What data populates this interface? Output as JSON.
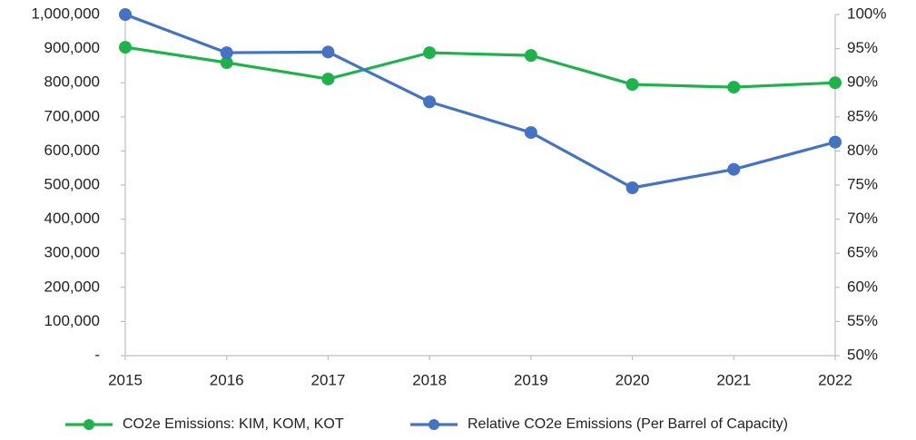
{
  "chart_data": {
    "type": "line",
    "categories": [
      "2015",
      "2016",
      "2017",
      "2018",
      "2019",
      "2020",
      "2021",
      "2022"
    ],
    "series": [
      {
        "name": "CO2e Emissions: KIM, KOM, KOT",
        "color": "#1db24a",
        "values": [
          904000,
          859000,
          811000,
          888000,
          880000,
          795000,
          787000,
          800000
        ]
      },
      {
        "name": "Relative CO2e Emissions (Per Barrel of Capacity)",
        "color": "#4472c4",
        "axis": "y2",
        "values": [
          100,
          94.4,
          94.5,
          87.2,
          82.7,
          74.6,
          77.3,
          81.3
        ]
      }
    ],
    "ylim": [
      0,
      1000000
    ],
    "yticks": [
      {
        "value": 0,
        "label": "-"
      },
      {
        "value": 100000,
        "label": "100,000"
      },
      {
        "value": 200000,
        "label": "200,000"
      },
      {
        "value": 300000,
        "label": "300,000"
      },
      {
        "value": 400000,
        "label": "400,000"
      },
      {
        "value": 500000,
        "label": "500,000"
      },
      {
        "value": 600000,
        "label": "600,000"
      },
      {
        "value": 700000,
        "label": "700,000"
      },
      {
        "value": 800000,
        "label": "800,000"
      },
      {
        "value": 900000,
        "label": "900,000"
      },
      {
        "value": 1000000,
        "label": "1,000,000"
      }
    ],
    "y2lim": [
      50,
      100
    ],
    "y2ticks": [
      {
        "value": 50,
        "label": "50%"
      },
      {
        "value": 55,
        "label": "55%"
      },
      {
        "value": 60,
        "label": "60%"
      },
      {
        "value": 65,
        "label": "65%"
      },
      {
        "value": 70,
        "label": "70%"
      },
      {
        "value": 75,
        "label": "75%"
      },
      {
        "value": 80,
        "label": "80%"
      },
      {
        "value": 85,
        "label": "85%"
      },
      {
        "value": 90,
        "label": "90%"
      },
      {
        "value": 95,
        "label": "95%"
      },
      {
        "value": 100,
        "label": "100%"
      }
    ],
    "grid": false,
    "legend": "bottom"
  }
}
